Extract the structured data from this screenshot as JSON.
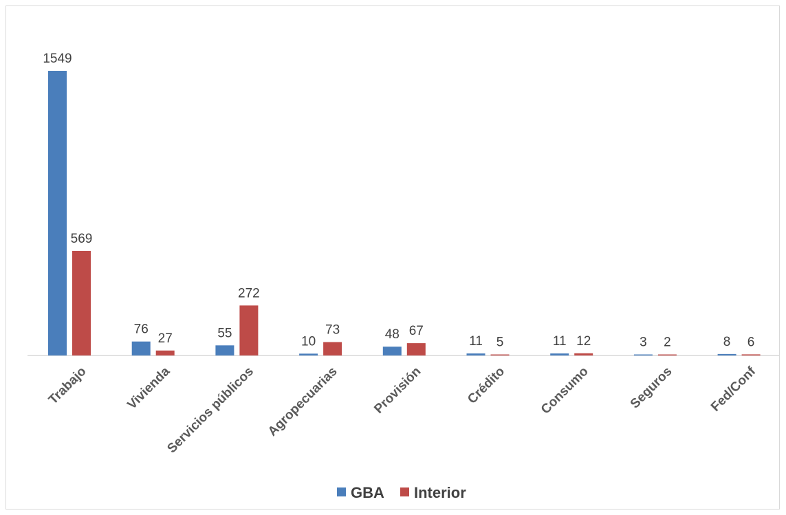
{
  "chart_data": {
    "type": "bar",
    "categories": [
      "Trabajo",
      "Vivienda",
      "Servicios públicos",
      "Agropecuarias",
      "Provisión",
      "Crédito",
      "Consumo",
      "Seguros",
      "Fed/Conf"
    ],
    "series": [
      {
        "name": "GBA",
        "color": "#4a7ebb",
        "values": [
          1549,
          76,
          55,
          10,
          48,
          11,
          11,
          3,
          8
        ]
      },
      {
        "name": "Interior",
        "color": "#be4b48",
        "values": [
          569,
          27,
          272,
          73,
          67,
          5,
          12,
          2,
          6
        ]
      }
    ],
    "title": "",
    "xlabel": "",
    "ylabel": "",
    "ylim": [
      0,
      1549
    ],
    "grid": false,
    "legend_position": "bottom"
  }
}
